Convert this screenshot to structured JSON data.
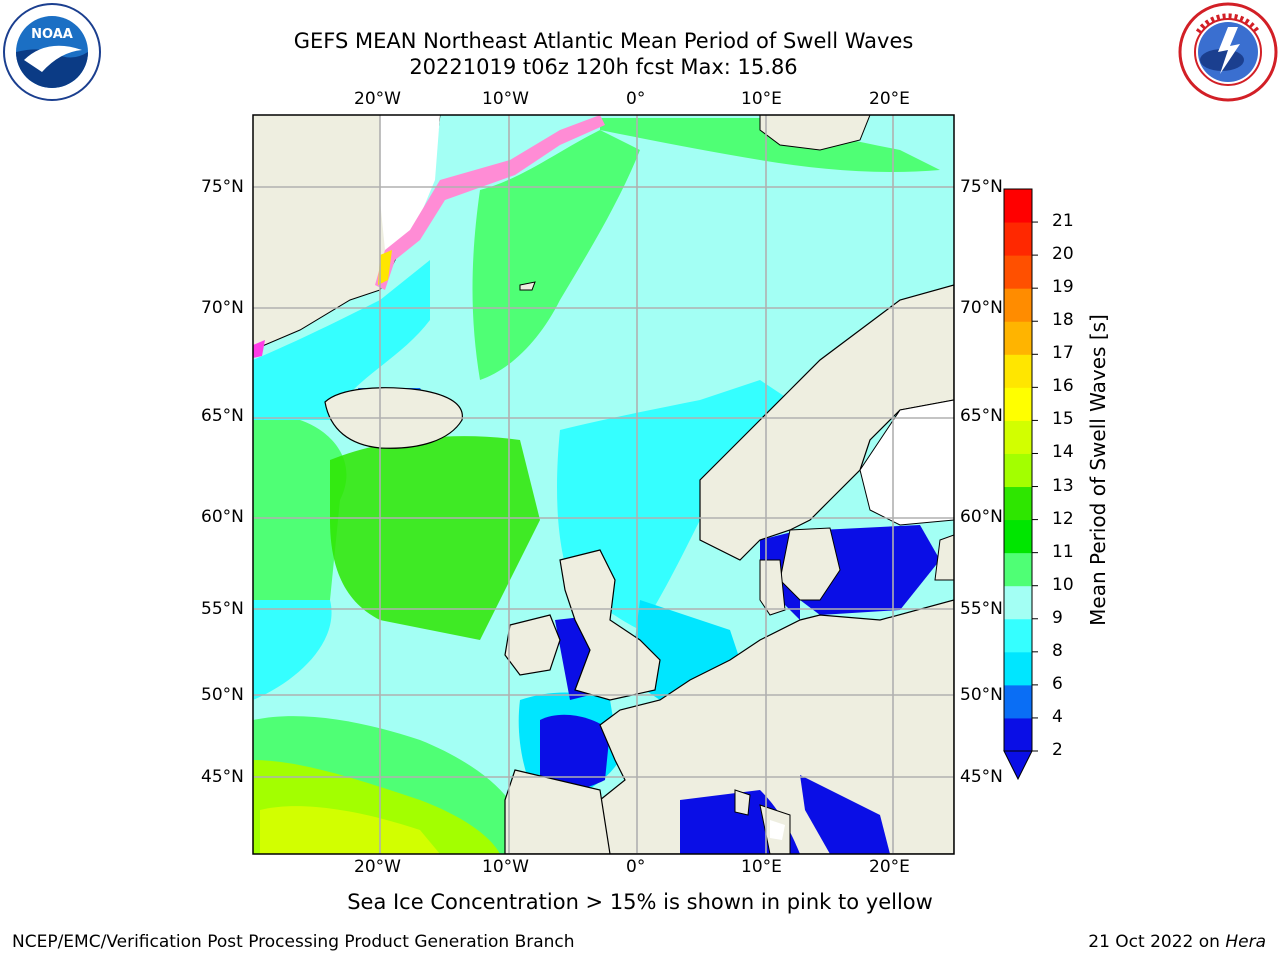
{
  "title": {
    "line1": "GEFS MEAN Northeast Atlantic Mean Period of Swell Waves",
    "line2": "20221019 t06z 120h fcst   Max: 15.86"
  },
  "map": {
    "lon_ticks": [
      "20°W",
      "10°W",
      "0°",
      "10°E",
      "20°E"
    ],
    "lat_ticks": [
      "75°N",
      "70°N",
      "65°N",
      "60°N",
      "55°N",
      "50°N",
      "45°N"
    ],
    "grid_color": "#b0b0b0",
    "land_color": "#eeeee0"
  },
  "colorbar": {
    "label": "Mean Period of Swell Waves [s]",
    "ticks": [
      "2",
      "4",
      "6",
      "8",
      "9",
      "10",
      "11",
      "12",
      "13",
      "14",
      "15",
      "16",
      "17",
      "18",
      "19",
      "20",
      "21"
    ],
    "colors": [
      "#0a0ee6",
      "#0a6ef5",
      "#00e6ff",
      "#35ffff",
      "#a3fff4",
      "#4fff75",
      "#00e600",
      "#2ee600",
      "#a3ff00",
      "#d2ff00",
      "#ffff00",
      "#ffe600",
      "#ffb400",
      "#ff8c00",
      "#ff5000",
      "#ff2800",
      "#ff0000"
    ]
  },
  "caption": "Sea Ice Concentration > 15% is shown in pink to yellow",
  "footer": {
    "left": "NCEP/EMC/Verification Post Processing Product Generation Branch",
    "date": "21 Oct 2022 on",
    "host": "Hera"
  },
  "logos": {
    "noaa": "NOAA",
    "noaa_ring": "NATIONAL OCEANIC AND ATMOSPHERIC ADMINISTRATION · U.S. DEPARTMENT OF COMMERCE",
    "nws_ring": "NATIONAL WEATHER SERVICE"
  }
}
